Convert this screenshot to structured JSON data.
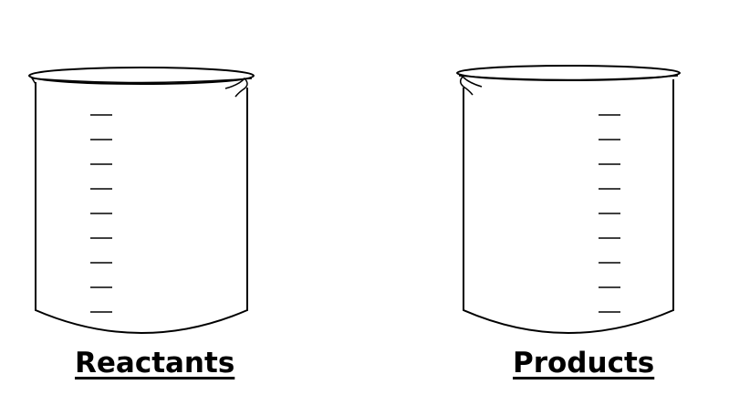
{
  "beakers": [
    {
      "label": "Reactants",
      "spout_side": "right",
      "graduation_marks": 9
    },
    {
      "label": "Products",
      "spout_side": "left",
      "graduation_marks": 9
    }
  ],
  "colors": {
    "stroke": "#000000",
    "background": "#ffffff"
  }
}
